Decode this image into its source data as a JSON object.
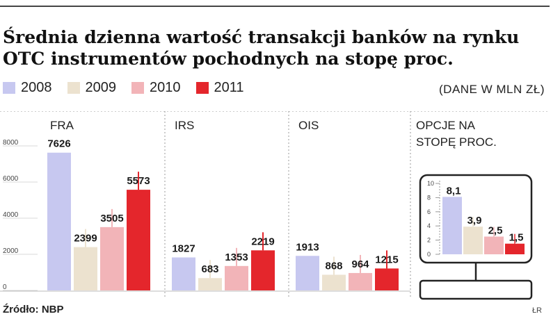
{
  "title": "Średnia dzienna wartość transakcji banków na rynku\nOTC instrumentów pochodnych na stopę proc.",
  "units": "(DANE W MLN ZŁ)",
  "source": "Źródło: NBP",
  "credit": "ŁR",
  "colors": {
    "2008": "#c7c8f0",
    "2009": "#ece2cf",
    "2010": "#f2b4b8",
    "2011": "#e4262c"
  },
  "legend": [
    {
      "label": "2008",
      "color": "#c7c8f0"
    },
    {
      "label": "2009",
      "color": "#ece2cf"
    },
    {
      "label": "2010",
      "color": "#f2b4b8"
    },
    {
      "label": "2011",
      "color": "#e4262c"
    }
  ],
  "chart_data": [
    {
      "type": "bar",
      "title": "",
      "categories": [
        "FRA",
        "IRS",
        "OIS"
      ],
      "series": [
        {
          "name": "2008",
          "values": [
            7626,
            1827,
            1913
          ],
          "labels": [
            "7626",
            "1827",
            "1913"
          ]
        },
        {
          "name": "2009",
          "values": [
            2399,
            683,
            868
          ],
          "labels": [
            "2399",
            "683",
            "868"
          ]
        },
        {
          "name": "2010",
          "values": [
            3505,
            1353,
            964
          ],
          "labels": [
            "3505",
            "1353",
            "964"
          ]
        },
        {
          "name": "2011",
          "values": [
            5573,
            2219,
            1215
          ],
          "labels": [
            "5573",
            "2219",
            "1215"
          ]
        }
      ],
      "yticks": [
        "8000",
        "6000",
        "4000",
        "2000",
        "0"
      ],
      "ylim": [
        0,
        8000
      ]
    },
    {
      "type": "bar",
      "title": "OPCJE NA STOPĘ PROC.",
      "categories": [
        "OPCJE NA STOPĘ PROC."
      ],
      "series": [
        {
          "name": "2008",
          "values": [
            8.1
          ],
          "labels": [
            "8,1"
          ]
        },
        {
          "name": "2009",
          "values": [
            3.9
          ],
          "labels": [
            "3,9"
          ]
        },
        {
          "name": "2010",
          "values": [
            2.5
          ],
          "labels": [
            "2,5"
          ]
        },
        {
          "name": "2011",
          "values": [
            1.5
          ],
          "labels": [
            "1,5"
          ]
        }
      ],
      "yticks": [
        "10",
        "8",
        "6",
        "4",
        "2",
        "0"
      ],
      "ylim": [
        0,
        10
      ]
    }
  ]
}
